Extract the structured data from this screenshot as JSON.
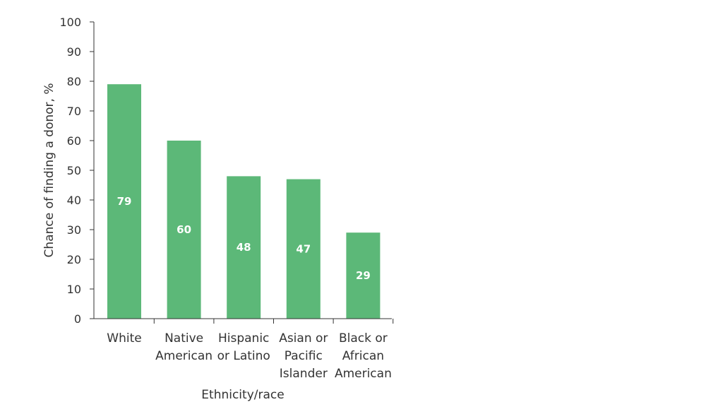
{
  "chart_data": {
    "type": "bar",
    "categories": [
      [
        "White"
      ],
      [
        "Native",
        "American"
      ],
      [
        "Hispanic",
        "or Latino"
      ],
      [
        "Asian or",
        "Pacific",
        "Islander"
      ],
      [
        "Black or",
        "African",
        "American"
      ]
    ],
    "values": [
      79,
      60,
      48,
      47,
      29
    ],
    "data_labels": [
      "79",
      "60",
      "48",
      "47",
      "29"
    ],
    "xlabel": "Ethnicity/race",
    "ylabel": "Chance of finding a donor, %",
    "ylim": [
      0,
      100
    ],
    "yticks": [
      0,
      10,
      20,
      30,
      40,
      50,
      60,
      70,
      80,
      90,
      100
    ],
    "bar_color": "#5cb878",
    "grid": false,
    "legend": "none"
  }
}
